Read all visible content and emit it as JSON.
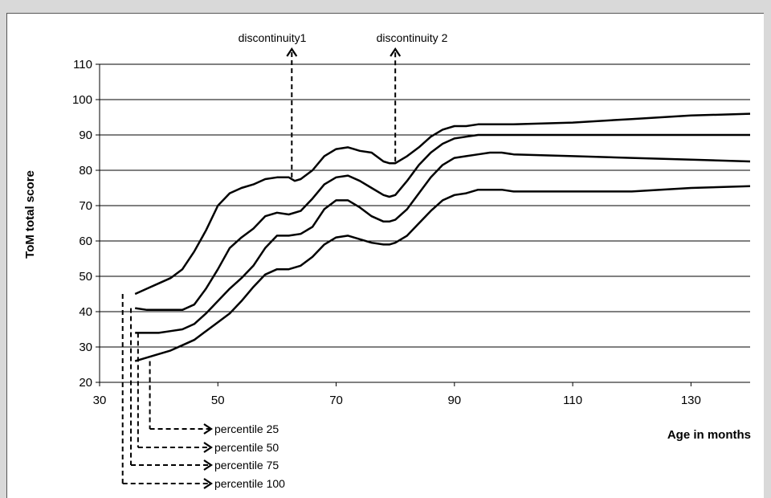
{
  "chart_data": {
    "type": "line",
    "title": "",
    "xlabel": "Age in months",
    "ylabel": "ToM total score",
    "xlim": [
      30,
      140
    ],
    "ylim": [
      20,
      110
    ],
    "x_ticks": [
      30,
      50,
      70,
      90,
      110,
      130
    ],
    "y_ticks": [
      20,
      30,
      40,
      50,
      60,
      70,
      80,
      90,
      100,
      110
    ],
    "grid": "horizontal",
    "legend": "none",
    "line_color": "#000000",
    "series": [
      {
        "name": "percentile 100",
        "x": [
          36,
          38,
          40,
          42,
          44,
          46,
          48,
          50,
          52,
          54,
          56,
          58,
          60,
          62,
          63,
          64,
          66,
          68,
          70,
          72,
          73,
          74,
          76,
          78,
          79,
          80,
          82,
          84,
          86,
          88,
          90,
          92,
          94,
          100,
          110,
          120,
          130,
          140
        ],
        "values": [
          45,
          46.5,
          48,
          49.5,
          52,
          57,
          63,
          70,
          73.5,
          75,
          76,
          77.5,
          78,
          78,
          77,
          77.5,
          80,
          84,
          86,
          86.5,
          86,
          85.5,
          85,
          82.5,
          82,
          82,
          84,
          86.5,
          89.5,
          91.5,
          92.5,
          92.5,
          93,
          93,
          93.5,
          94.5,
          95.5,
          96
        ]
      },
      {
        "name": "percentile 75",
        "x": [
          36,
          38,
          40,
          42,
          44,
          46,
          48,
          50,
          52,
          54,
          56,
          58,
          60,
          62,
          64,
          66,
          68,
          70,
          72,
          74,
          76,
          78,
          79,
          80,
          82,
          84,
          86,
          88,
          90,
          92,
          94,
          96,
          100,
          110,
          120,
          130,
          140
        ],
        "values": [
          41,
          40.5,
          40.5,
          40.5,
          40.5,
          42,
          46.5,
          52,
          58,
          61,
          63.5,
          67,
          68,
          67.5,
          68.5,
          72,
          76,
          78,
          78.5,
          77,
          75,
          73,
          72.5,
          73,
          77,
          81.5,
          85,
          87.5,
          89,
          89.5,
          90,
          90,
          90,
          90,
          90,
          90,
          90
        ]
      },
      {
        "name": "percentile 50",
        "x": [
          36,
          38,
          40,
          42,
          44,
          46,
          48,
          50,
          52,
          54,
          56,
          58,
          60,
          62,
          64,
          66,
          68,
          70,
          72,
          74,
          76,
          78,
          79,
          80,
          82,
          84,
          86,
          88,
          90,
          92,
          94,
          96,
          98,
          100,
          110,
          120,
          130,
          140
        ],
        "values": [
          34,
          34,
          34,
          34.5,
          35,
          36.5,
          39.5,
          43,
          46.5,
          49.5,
          53,
          58,
          61.5,
          61.5,
          62,
          64,
          69,
          71.5,
          71.5,
          69.5,
          67,
          65.5,
          65.5,
          66,
          69,
          73.5,
          78,
          81.5,
          83.5,
          84,
          84.5,
          85,
          85,
          84.5,
          84,
          83.5,
          83,
          82.5
        ]
      },
      {
        "name": "percentile 25",
        "x": [
          36,
          38,
          40,
          42,
          44,
          46,
          48,
          50,
          52,
          54,
          56,
          58,
          60,
          62,
          64,
          66,
          68,
          70,
          72,
          74,
          76,
          78,
          79,
          80,
          82,
          84,
          86,
          88,
          90,
          92,
          94,
          96,
          98,
          100,
          110,
          120,
          130,
          140
        ],
        "values": [
          26,
          27,
          28,
          29,
          30.5,
          32,
          34.5,
          37,
          39.5,
          43,
          47,
          50.5,
          52,
          52,
          53,
          55.5,
          59,
          61,
          61.5,
          60.5,
          59.5,
          59,
          59,
          59.5,
          61.5,
          65,
          68.5,
          71.5,
          73,
          73.5,
          74.5,
          74.5,
          74.5,
          74,
          74,
          74,
          75,
          75.5
        ]
      }
    ],
    "annotations": [
      {
        "text": "discontinuity1",
        "x": 62.5,
        "kind": "vertical-arrow"
      },
      {
        "text": "discontinuity 2",
        "x": 80,
        "kind": "vertical-arrow"
      }
    ],
    "percentile_labels": [
      "percentile 25",
      "percentile 50",
      "percentile 75",
      "percentile 100"
    ]
  }
}
